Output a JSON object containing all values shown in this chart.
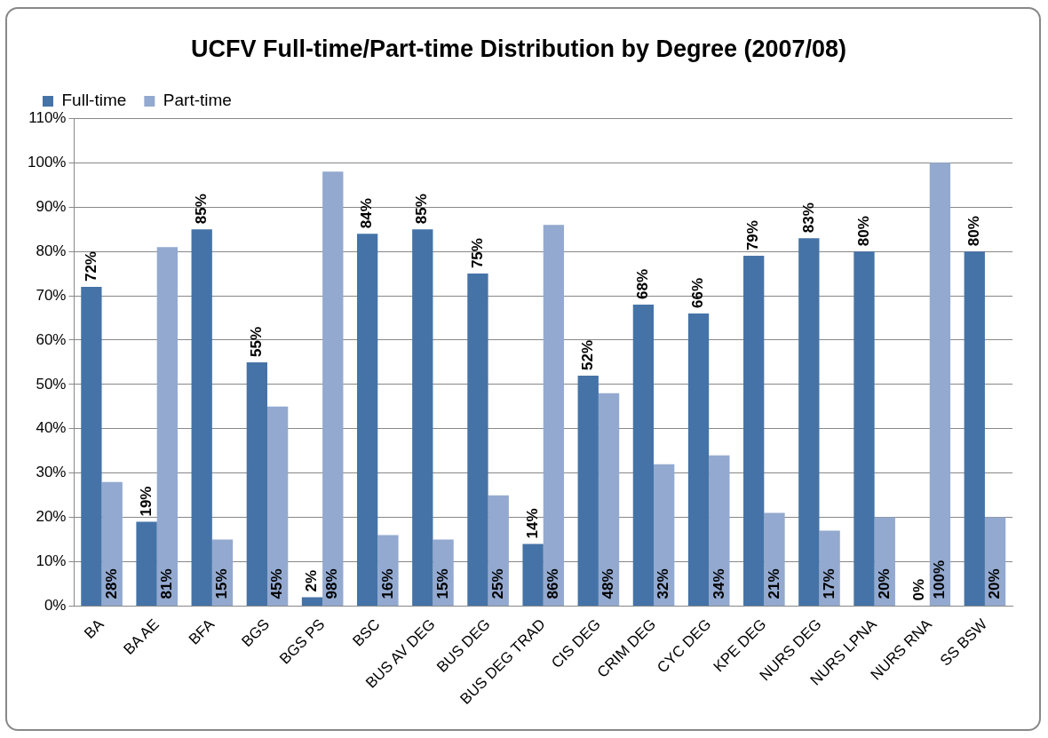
{
  "chart_data": {
    "type": "bar",
    "title": "UCFV Full-time/Part-time Distribution by Degree (2007/08)",
    "categories": [
      "BA",
      "BA AE",
      "BFA",
      "BGS",
      "BGS PS",
      "BSC",
      "BUS AV DEG",
      "BUS DEG",
      "BUS DEG TRAD",
      "CIS DEG",
      "CRIM DEG",
      "CYC DEG",
      "KPE DEG",
      "NURS DEG",
      "NURS LPNA",
      "NURS RNA",
      "SS BSW"
    ],
    "series": [
      {
        "name": "Full-time",
        "color": "#4573a7",
        "values": [
          72,
          19,
          85,
          55,
          2,
          84,
          85,
          75,
          14,
          52,
          68,
          66,
          79,
          83,
          80,
          0,
          80
        ],
        "value_labels": [
          "72%",
          "19%",
          "85%",
          "55%",
          "2%",
          "84%",
          "85%",
          "75%",
          "14%",
          "52%",
          "68%",
          "66%",
          "79%",
          "83%",
          "80%",
          "0%",
          "80%"
        ]
      },
      {
        "name": "Part-time",
        "color": "#93a9cf",
        "values": [
          28,
          81,
          15,
          45,
          98,
          16,
          15,
          25,
          86,
          48,
          32,
          34,
          21,
          17,
          20,
          100,
          20
        ],
        "value_labels": [
          "28%",
          "81%",
          "15%",
          "45%",
          "98%",
          "16%",
          "15%",
          "25%",
          "86%",
          "48%",
          "32%",
          "34%",
          "21%",
          "17%",
          "20%",
          "100%",
          "20%"
        ]
      }
    ],
    "ylim": [
      0,
      110
    ],
    "yticks": [
      {
        "value": 0,
        "label": "0%"
      },
      {
        "value": 10,
        "label": "10%"
      },
      {
        "value": 20,
        "label": "20%"
      },
      {
        "value": 30,
        "label": "30%"
      },
      {
        "value": 40,
        "label": "40%"
      },
      {
        "value": 50,
        "label": "50%"
      },
      {
        "value": 60,
        "label": "60%"
      },
      {
        "value": 70,
        "label": "70%"
      },
      {
        "value": 80,
        "label": "80%"
      },
      {
        "value": 90,
        "label": "90%"
      },
      {
        "value": 100,
        "label": "100%"
      },
      {
        "value": 110,
        "label": "110%"
      }
    ],
    "grid": "y",
    "legend": "top left"
  }
}
